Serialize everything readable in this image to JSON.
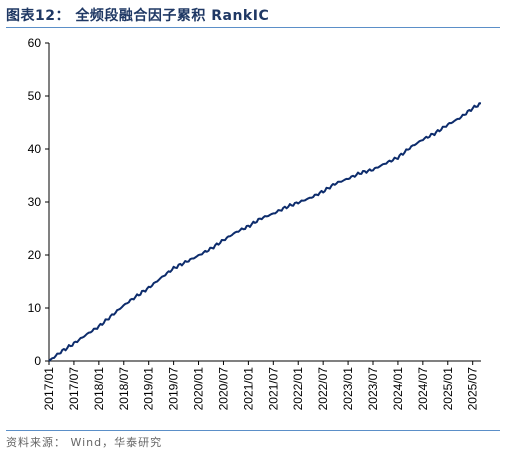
{
  "title": "图表12：  全频段融合因子累积 RankIC",
  "source": "资料来源：  Wind，华泰研究",
  "colors": {
    "line": "#0d2c6c",
    "rule": "#5b8fc8",
    "title": "#1f3864"
  },
  "chart_data": {
    "type": "line",
    "title": "全频段融合因子累积 RankIC",
    "xlabel": "",
    "ylabel": "",
    "ylim": [
      0,
      60
    ],
    "yticks": [
      0,
      10,
      20,
      30,
      40,
      50,
      60
    ],
    "xticks": [
      "2017/01",
      "2017/07",
      "2018/01",
      "2018/07",
      "2019/01",
      "2019/07",
      "2020/01",
      "2020/07",
      "2021/01",
      "2021/07",
      "2022/01",
      "2022/07",
      "2023/01",
      "2023/07",
      "2024/01",
      "2024/07",
      "2025/01",
      "2025/07"
    ],
    "grid": false,
    "legend": "none",
    "series": [
      {
        "x": [
          "2017/01",
          "2017/04",
          "2017/07",
          "2017/10",
          "2018/01",
          "2018/04",
          "2018/07",
          "2018/10",
          "2019/01",
          "2019/04",
          "2019/07",
          "2019/10",
          "2020/01",
          "2020/04",
          "2020/07",
          "2020/10",
          "2021/01",
          "2021/04",
          "2021/07",
          "2021/10",
          "2022/01",
          "2022/04",
          "2022/07",
          "2022/10",
          "2023/01",
          "2023/04",
          "2023/07",
          "2023/10",
          "2024/01",
          "2024/04",
          "2024/07",
          "2024/10",
          "2025/01",
          "2025/04",
          "2025/07",
          "2025/09"
        ],
        "values": [
          0,
          1.8,
          3.3,
          5.0,
          6.5,
          8.5,
          10.5,
          12.2,
          13.8,
          15.7,
          17.5,
          18.7,
          19.9,
          21.2,
          22.8,
          24.3,
          25.4,
          26.9,
          27.8,
          29.0,
          29.9,
          30.8,
          32.0,
          33.5,
          34.4,
          35.5,
          36.1,
          37.3,
          38.4,
          40.3,
          41.8,
          43.0,
          44.6,
          45.9,
          47.7,
          48.6
        ]
      }
    ]
  }
}
